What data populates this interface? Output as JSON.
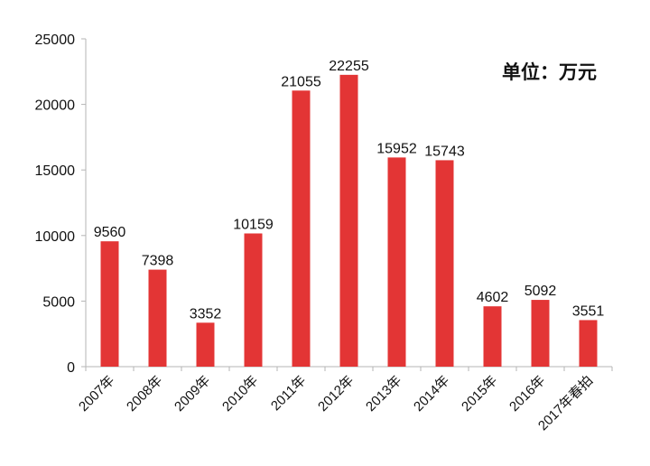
{
  "unit_note": "单位：万元",
  "colors": {
    "bar": "#e33535",
    "axis": "#b5b5b5",
    "text": "#111111"
  },
  "chart_data": {
    "type": "bar",
    "categories": [
      "2007年",
      "2008年",
      "2009年",
      "2010年",
      "2011年",
      "2012年",
      "2013年",
      "2014年",
      "2015年",
      "2016年",
      "2017年春拍"
    ],
    "values": [
      9560,
      7398,
      3352,
      10159,
      21055,
      22255,
      15952,
      15743,
      4602,
      5092,
      3551
    ],
    "data_labels": [
      "9560",
      "7398",
      "3352",
      "10159",
      "21055",
      "22255",
      "15952",
      "15743",
      "4602",
      "5092",
      "3551"
    ],
    "yticks": [
      0,
      5000,
      10000,
      15000,
      20000,
      25000
    ],
    "ylim": [
      0,
      25000
    ],
    "title": "",
    "xlabel": "",
    "ylabel": "",
    "grid": false,
    "legend": "none"
  }
}
